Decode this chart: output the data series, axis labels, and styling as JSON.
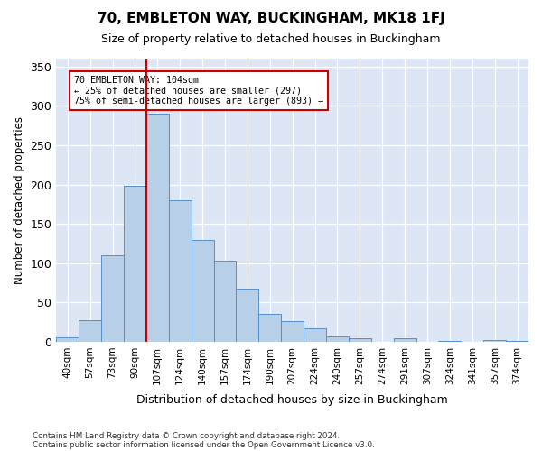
{
  "title1": "70, EMBLETON WAY, BUCKINGHAM, MK18 1FJ",
  "title2": "Size of property relative to detached houses in Buckingham",
  "xlabel": "Distribution of detached houses by size in Buckingham",
  "ylabel": "Number of detached properties",
  "categories": [
    "40sqm",
    "57sqm",
    "73sqm",
    "90sqm",
    "107sqm",
    "124sqm",
    "140sqm",
    "157sqm",
    "174sqm",
    "190sqm",
    "207sqm",
    "224sqm",
    "240sqm",
    "257sqm",
    "274sqm",
    "291sqm",
    "307sqm",
    "324sqm",
    "341sqm",
    "357sqm",
    "374sqm"
  ],
  "values": [
    6,
    27,
    110,
    198,
    290,
    180,
    130,
    103,
    68,
    36,
    26,
    17,
    7,
    5,
    0,
    4,
    0,
    1,
    0,
    2,
    1
  ],
  "bar_color": "#b8cfe8",
  "bar_edgecolor": "#5590c8",
  "vline_color": "#cc0000",
  "vline_x_index": 4,
  "annotation_text": "70 EMBLETON WAY: 104sqm\n← 25% of detached houses are smaller (297)\n75% of semi-detached houses are larger (893) →",
  "annotation_box_edgecolor": "#cc0000",
  "background_color": "#dce6f5",
  "ylim": [
    0,
    360
  ],
  "yticks": [
    0,
    50,
    100,
    150,
    200,
    250,
    300,
    350
  ],
  "footnote1": "Contains HM Land Registry data © Crown copyright and database right 2024.",
  "footnote2": "Contains public sector information licensed under the Open Government Licence v3.0."
}
